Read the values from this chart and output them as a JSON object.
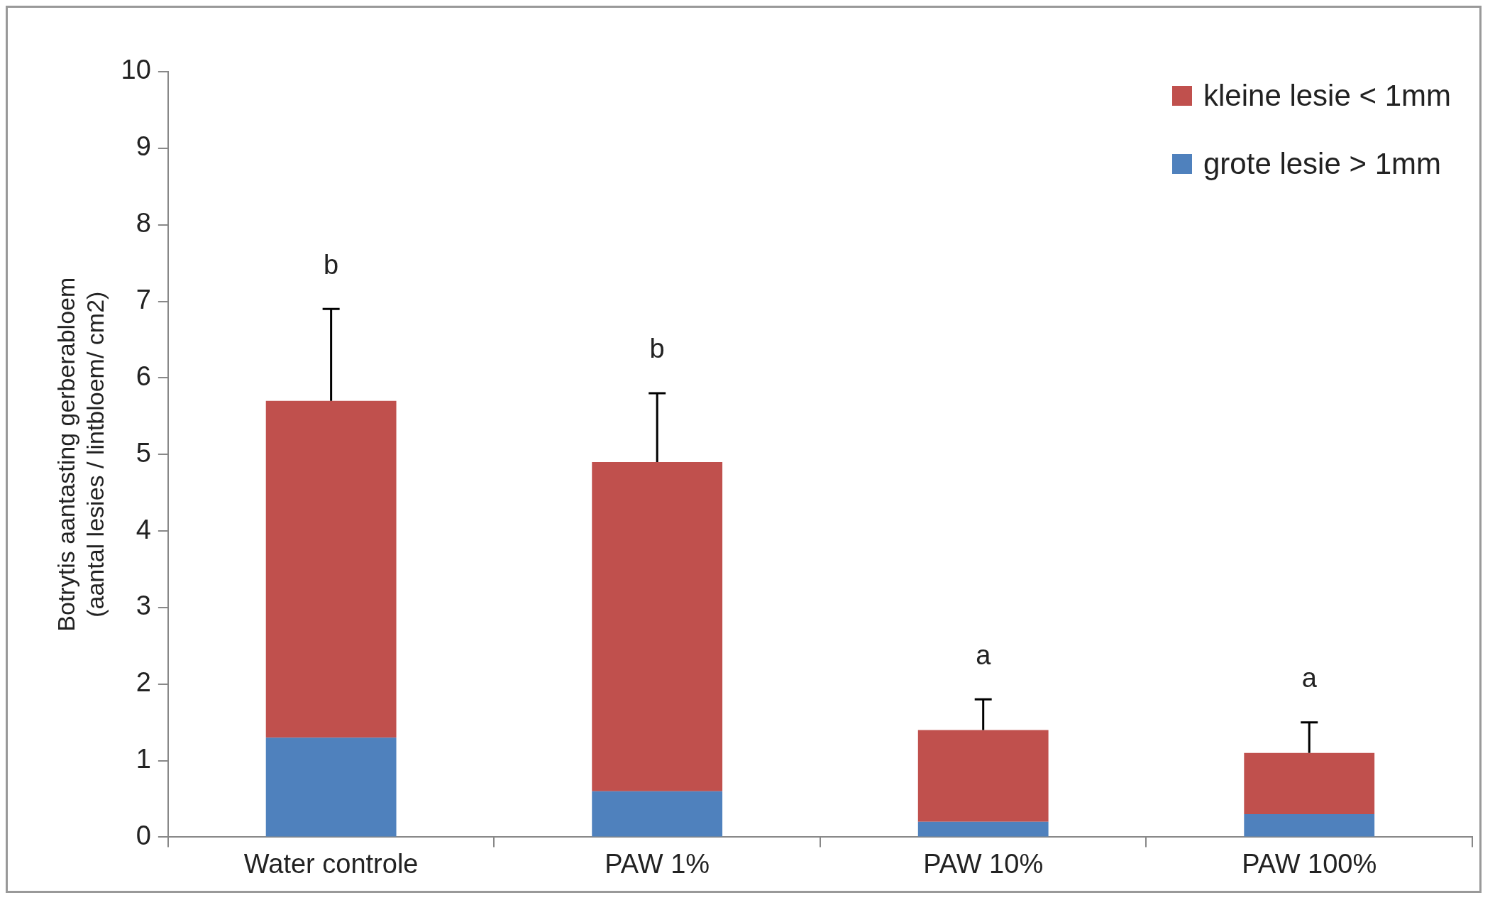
{
  "chart_data": {
    "type": "bar",
    "stacked": true,
    "ylabel": "Botrytis aantasting gerberabloem\n(aantal lesies / lintbloem/ cm2)",
    "categories": [
      "Water controle",
      "PAW 1%",
      "PAW 10%",
      "PAW 100%"
    ],
    "series": [
      {
        "name": "grote lesie > 1mm",
        "color": "#4f81bd",
        "values": [
          1.3,
          0.6,
          0.2,
          0.3
        ]
      },
      {
        "name": "kleine lesie < 1mm",
        "color": "#c0504d",
        "values": [
          4.4,
          4.3,
          1.2,
          0.8
        ],
        "errors": [
          [
            5.7,
            6.9
          ],
          [
            4.9,
            5.8
          ],
          [
            1.4,
            1.8
          ],
          [
            1.1,
            1.5
          ]
        ]
      }
    ],
    "ylim": [
      0,
      10
    ],
    "yticks": [
      0,
      1,
      2,
      3,
      4,
      5,
      6,
      7,
      8,
      9,
      10
    ],
    "legend": "top right",
    "annotations": [
      "b",
      "b",
      "a",
      "a"
    ]
  }
}
